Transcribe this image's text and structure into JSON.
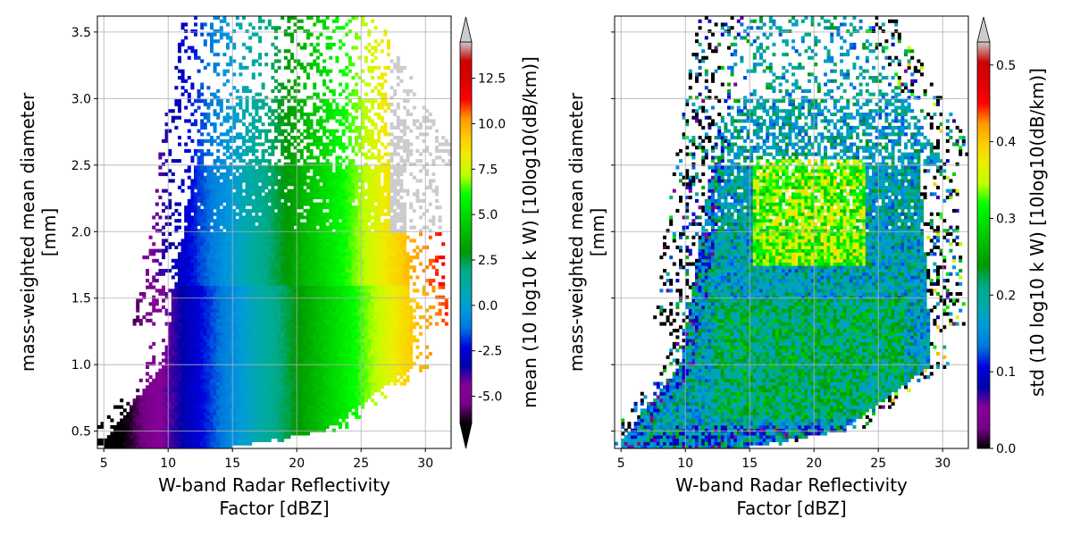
{
  "chart_data": [
    {
      "type": "heatmap",
      "panel": "left",
      "title": "",
      "xlabel": [
        "W-band Radar Reflectivity",
        "Factor [dBZ]"
      ],
      "ylabel": [
        "mass-weighted mean diameter",
        "[mm]"
      ],
      "xlim": [
        4.5,
        32
      ],
      "ylim": [
        0.37,
        3.62
      ],
      "xticks": [
        5,
        10,
        15,
        20,
        25,
        30
      ],
      "yticks": [
        0.5,
        1.0,
        1.5,
        2.0,
        2.5,
        3.0,
        3.5
      ],
      "grid": true,
      "colormap": "nipy_spectral",
      "colorbar": {
        "label": "mean (10 log10 k W) [10log10(dB/km)]",
        "range": [
          -6.5,
          14.5
        ],
        "ticks": [
          -5.0,
          -2.5,
          0.0,
          2.5,
          5.0,
          7.5,
          10.0,
          12.5
        ],
        "extend": "both"
      },
      "description_values": {
        "trend": "mean increases roughly linearly with reflectivity, about -6.8 + 0.7 per dBZ, with weak dependence on diameter",
        "data_extent_x_at_D_0.5": [
          5.5,
          22
        ],
        "data_extent_x_at_D_1.0": [
          6,
          29
        ],
        "data_extent_x_at_D_2.5": [
          9,
          30
        ],
        "max_diameter_with_data": 3.6
      }
    },
    {
      "type": "heatmap",
      "panel": "right",
      "title": "",
      "xlabel": [
        "W-band Radar Reflectivity",
        "Factor [dBZ]"
      ],
      "ylabel": [
        "mass-weighted mean diameter",
        "[mm]"
      ],
      "xlim": [
        4.5,
        32
      ],
      "ylim": [
        0.37,
        3.62
      ],
      "xticks": [
        5,
        10,
        15,
        20,
        25,
        30
      ],
      "yticks": [
        0.5,
        1.0,
        1.5,
        2.0,
        2.5,
        3.0,
        3.5
      ],
      "grid": true,
      "colormap": "nipy_spectral",
      "colorbar": {
        "label": "std (10 log10 k W) [10log10(dB/km)]",
        "range": [
          0.0,
          0.53
        ],
        "ticks": [
          0.0,
          0.1,
          0.2,
          0.3,
          0.4,
          0.5
        ],
        "extend": "max"
      },
      "description_values": {
        "core_std": "about 0.2 to 0.25 in the dense core (D 0.6-1.5 mm, 12-27 dBZ)",
        "upper_std": "about 0.3 to 0.4 near D 1.8-2.5 mm, 17-23 dBZ",
        "edge_std": "near 0 at sparse edges"
      }
    }
  ]
}
